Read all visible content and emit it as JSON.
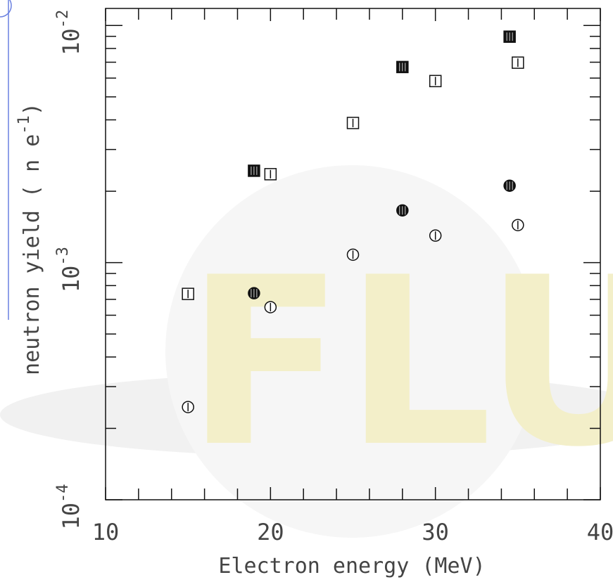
{
  "chart_data": {
    "type": "scatter",
    "x_label": "Electron energy (MeV)",
    "y_label": {
      "text": "neutron yield ( n e",
      "superscript": "-1",
      "suffix": ")"
    },
    "watermark": "FLU",
    "log_y": true,
    "xlim": [
      10,
      40
    ],
    "xticks": [
      10,
      20,
      30,
      40
    ],
    "xminorticks": [
      12,
      14,
      16,
      18,
      22,
      24,
      26,
      28,
      32,
      34,
      36,
      38
    ],
    "ylim": [
      0.0001,
      0.0118
    ],
    "yticks": [
      {
        "value": 0.0001,
        "label": "10",
        "exponent": "-4"
      },
      {
        "value": 0.001,
        "label": "10",
        "exponent": "-3"
      },
      {
        "value": 0.01,
        "label": "10",
        "exponent": "-2"
      }
    ],
    "yminorticks": [
      0.0002,
      0.0003,
      0.0004,
      0.0005,
      0.0006,
      0.0007,
      0.0008,
      0.0009,
      0.002,
      0.003,
      0.004,
      0.005,
      0.006,
      0.007,
      0.008,
      0.009
    ],
    "series": [
      {
        "marker": "square",
        "filled": true,
        "color": "#111111",
        "x": [
          19,
          28,
          34.5
        ],
        "values": [
          0.00244,
          0.00668,
          0.00897
        ]
      },
      {
        "marker": "square",
        "filled": false,
        "color": "#111111",
        "x": [
          15,
          20,
          25,
          30,
          35
        ],
        "values": [
          0.000738,
          0.00236,
          0.00388,
          0.00583,
          0.00697
        ]
      },
      {
        "marker": "circle",
        "filled": true,
        "color": "#111111",
        "x": [
          19,
          28,
          34.5
        ],
        "values": [
          0.000743,
          0.00166,
          0.00211
        ]
      },
      {
        "marker": "circle",
        "filled": false,
        "color": "#111111",
        "x": [
          15,
          20,
          25,
          30,
          35
        ],
        "values": [
          0.000246,
          0.000649,
          0.00108,
          0.0013,
          0.00144
        ]
      }
    ]
  }
}
